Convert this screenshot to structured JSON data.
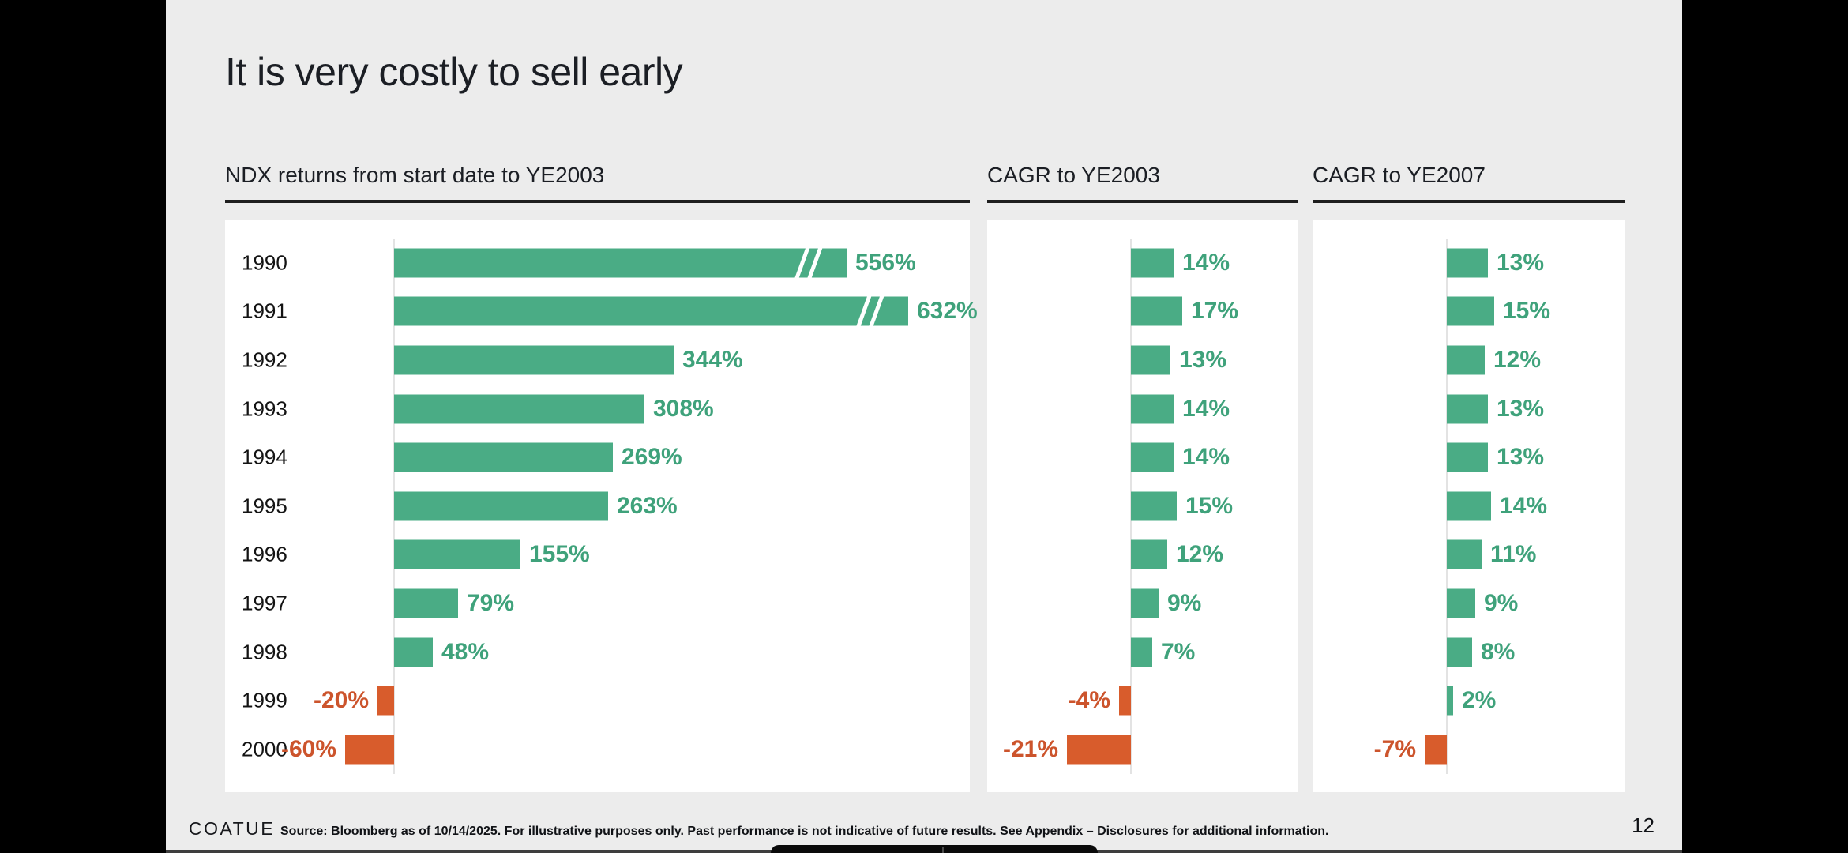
{
  "slide": {
    "title": "It is very costly to sell early",
    "footer": {
      "logo": "COATUE",
      "note": "Source: Bloomberg as of 10/14/2025. For illustrative purposes only. Past performance is not indicative of future results. See Appendix – Disclosures for additional information.",
      "page_number": "12"
    },
    "colors": {
      "positive_bar": "#4aac85",
      "positive_text": "#3fa27b",
      "negative_bar": "#d85c2c",
      "negative_text": "#cc542c",
      "slide_background": "#ececec",
      "panel_background": "#ffffff",
      "axis_line": "#e3e3e3"
    }
  },
  "chart_data": [
    {
      "type": "bar",
      "orientation": "horizontal",
      "title": "NDX returns from start date to YE2003",
      "categories": [
        "1990",
        "1991",
        "1992",
        "1993",
        "1994",
        "1995",
        "1996",
        "1997",
        "1998",
        "1999",
        "2000"
      ],
      "values": [
        556,
        632,
        344,
        308,
        269,
        263,
        155,
        79,
        48,
        -20,
        -60
      ],
      "unit": "%",
      "xlim": [
        -100,
        700
      ],
      "grid": false,
      "legend": false,
      "show_category_labels": true,
      "axis_break_rows": [
        0,
        1
      ],
      "value_labels": [
        "556%",
        "632%",
        "344%",
        "308%",
        "269%",
        "263%",
        "155%",
        "79%",
        "48%",
        "-20%",
        "-60%"
      ]
    },
    {
      "type": "bar",
      "orientation": "horizontal",
      "title": "CAGR to YE2003",
      "categories": [
        "1990",
        "1991",
        "1992",
        "1993",
        "1994",
        "1995",
        "1996",
        "1997",
        "1998",
        "1999",
        "2000"
      ],
      "values": [
        14,
        17,
        13,
        14,
        14,
        15,
        12,
        9,
        7,
        -4,
        -21
      ],
      "unit": "%",
      "xlim": [
        -25,
        30
      ],
      "grid": false,
      "legend": false,
      "show_category_labels": false,
      "axis_break_rows": [],
      "value_labels": [
        "14%",
        "17%",
        "13%",
        "14%",
        "14%",
        "15%",
        "12%",
        "9%",
        "7%",
        "-4%",
        "-21%"
      ]
    },
    {
      "type": "bar",
      "orientation": "horizontal",
      "title": "CAGR to YE2007",
      "categories": [
        "1990",
        "1991",
        "1992",
        "1993",
        "1994",
        "1995",
        "1996",
        "1997",
        "1998",
        "1999",
        "2000"
      ],
      "values": [
        13,
        15,
        12,
        13,
        13,
        14,
        11,
        9,
        8,
        2,
        -7
      ],
      "unit": "%",
      "xlim": [
        -12,
        20
      ],
      "grid": false,
      "legend": false,
      "show_category_labels": false,
      "axis_break_rows": [],
      "value_labels": [
        "13%",
        "15%",
        "12%",
        "13%",
        "13%",
        "14%",
        "11%",
        "9%",
        "8%",
        "2%",
        "-7%"
      ]
    }
  ]
}
